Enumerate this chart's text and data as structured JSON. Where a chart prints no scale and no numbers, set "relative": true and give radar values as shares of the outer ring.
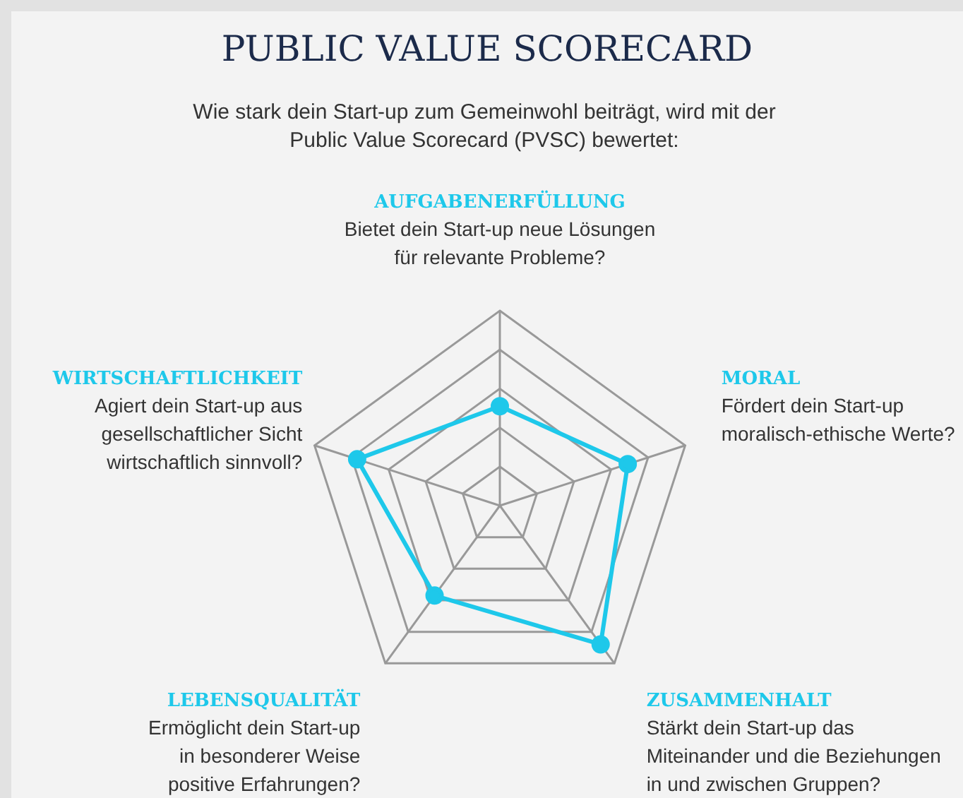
{
  "chart_data": {
    "type": "radar",
    "title": "PUBLIC VALUE SCORECARD",
    "subtitle": "Wie stark dein Start-up zum Gemeinwohl beiträgt, wird mit der Public Value Scorecard (PVSC) bewertet:",
    "categories": [
      "AUFGABENERFÜLLUNG",
      "MORAL",
      "ZUSAMMENHALT",
      "LEBENSQUALITÄT",
      "WIRTSCHAFTLICHKEIT"
    ],
    "annotations": [
      "Bietet dein Start-up neue Lösungen\nfür relevante Probleme?",
      "Fördert dein Start-up\nmoralisch-ethische Werte?",
      "Stärkt dein Start-up das\nMiteinander und die Beziehungen\nin und zwischen Gruppen?",
      "Ermöglicht dein Start-up\nin besonderer Weise\npositive Erfahrungen?",
      "Agiert dein Start-up aus\ngesellschaftlicher Sicht\nwirtschaftlich sinnvoll?"
    ],
    "relative": true,
    "grid": true,
    "marker": "circle",
    "series": [
      {
        "color": "#1ec8ea",
        "values": [
          0.51,
          0.69,
          0.88,
          0.57,
          0.77
        ]
      }
    ]
  }
}
